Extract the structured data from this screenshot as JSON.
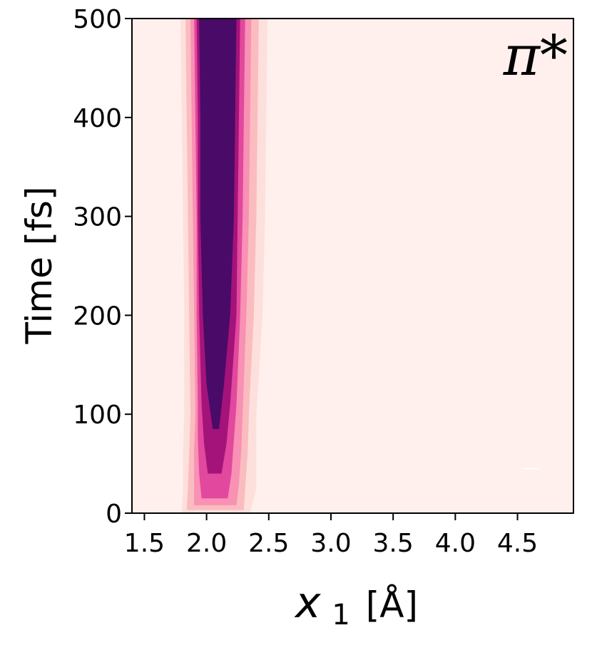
{
  "chart_data": {
    "type": "heatmap",
    "panel_label": "π*",
    "xlabel": {
      "symbol": "x",
      "subscript": "1",
      "unit": "[Å]"
    },
    "ylabel": "Time [fs]",
    "xlim": [
      1.4,
      4.95
    ],
    "ylim": [
      0,
      500
    ],
    "xticks": [
      1.5,
      2.0,
      2.5,
      3.0,
      3.5,
      4.0,
      4.5
    ],
    "xtick_labels": [
      "1.5",
      "2.0",
      "2.5",
      "3.0",
      "3.5",
      "4.0",
      "4.5"
    ],
    "yticks": [
      0,
      100,
      200,
      300,
      400,
      500
    ],
    "ytick_labels": [
      "0",
      "100",
      "200",
      "300",
      "400",
      "500"
    ],
    "background_color": "#fff0ee",
    "colormap": "RdPu",
    "grid": false,
    "contour_bands": [
      {
        "color": "#fde0dc",
        "time": [
          0,
          25,
          60,
          100,
          200,
          300,
          400,
          500
        ],
        "x_left": [
          1.8,
          1.81,
          1.81,
          1.82,
          1.82,
          1.81,
          1.8,
          1.79
        ],
        "x_right": [
          2.35,
          2.4,
          2.4,
          2.4,
          2.45,
          2.47,
          2.48,
          2.49
        ]
      },
      {
        "color": "#fbbcc0",
        "time": [
          3,
          25,
          60,
          100,
          200,
          300,
          400,
          500
        ],
        "x_left": [
          1.84,
          1.85,
          1.86,
          1.87,
          1.86,
          1.85,
          1.84,
          1.83
        ],
        "x_right": [
          2.3,
          2.31,
          2.33,
          2.34,
          2.38,
          2.4,
          2.41,
          2.42
        ]
      },
      {
        "color": "#f891b4",
        "time": [
          8,
          30,
          65,
          100,
          200,
          300,
          400,
          500
        ],
        "x_left": [
          1.9,
          1.9,
          1.9,
          1.91,
          1.9,
          1.89,
          1.88,
          1.87
        ],
        "x_right": [
          2.24,
          2.26,
          2.28,
          2.29,
          2.32,
          2.34,
          2.35,
          2.36
        ]
      },
      {
        "color": "#e2489d",
        "time": [
          15,
          40,
          75,
          110,
          200,
          300,
          400,
          500
        ],
        "x_left": [
          1.96,
          1.94,
          1.93,
          1.93,
          1.92,
          1.92,
          1.91,
          1.9
        ],
        "x_right": [
          2.17,
          2.2,
          2.22,
          2.24,
          2.27,
          2.29,
          2.3,
          2.31
        ]
      },
      {
        "color": "#a4137a",
        "time": [
          40,
          70,
          110,
          200,
          300,
          400,
          500
        ],
        "x_left": [
          2.01,
          1.98,
          1.96,
          1.94,
          1.93,
          1.93,
          1.92
        ],
        "x_right": [
          2.12,
          2.16,
          2.19,
          2.24,
          2.25,
          2.26,
          2.27
        ]
      },
      {
        "color": "#4a0a68",
        "time": [
          85,
          130,
          200,
          300,
          400,
          500
        ],
        "x_left": [
          2.05,
          2.0,
          1.97,
          1.95,
          1.95,
          1.94
        ],
        "x_right": [
          2.1,
          2.14,
          2.19,
          2.22,
          2.23,
          2.24
        ]
      }
    ],
    "annotations": [
      {
        "type": "short_line",
        "x": [
          4.55,
          4.68
        ],
        "y": 45,
        "color": "#ffffff"
      }
    ]
  }
}
